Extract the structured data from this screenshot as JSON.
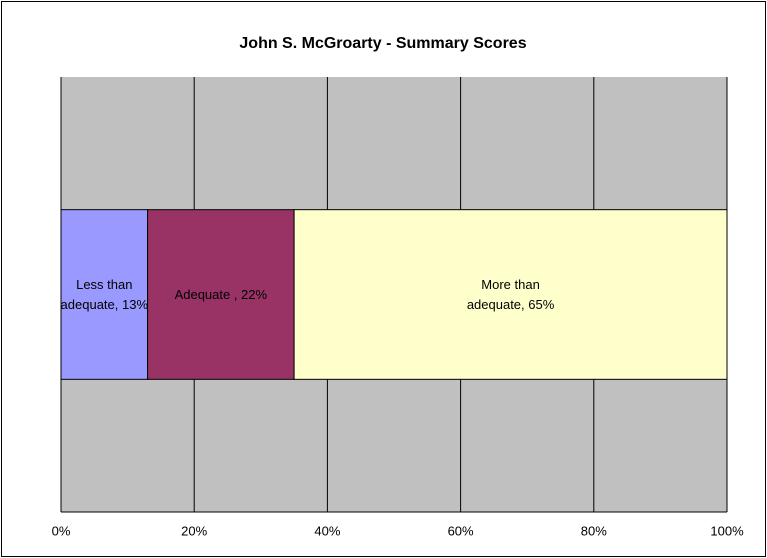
{
  "chart_data": {
    "type": "bar",
    "orientation": "horizontal",
    "stacked": true,
    "title": "John S. McGroarty - Summary Scores",
    "categories": [
      null
    ],
    "series": [
      {
        "color": "#9999ff",
        "values": [
          13
        ],
        "value_labels": [
          "Less than adequate, 13%"
        ]
      },
      {
        "color": "#993366",
        "values": [
          22
        ],
        "value_labels": [
          "Adequate , 22%"
        ]
      },
      {
        "color": "#ffffcc",
        "values": [
          65
        ],
        "value_labels": [
          "More than adequate, 65%"
        ]
      }
    ],
    "xlim": [
      0,
      100
    ],
    "xticks": [
      {
        "value": 0,
        "label": "0%"
      },
      {
        "value": 20,
        "label": "20%"
      },
      {
        "value": 40,
        "label": "40%"
      },
      {
        "value": 60,
        "label": "60%"
      },
      {
        "value": 80,
        "label": "80%"
      },
      {
        "value": 100,
        "label": "100%"
      }
    ],
    "grid": true,
    "plot_background": "#c0c0c0"
  }
}
